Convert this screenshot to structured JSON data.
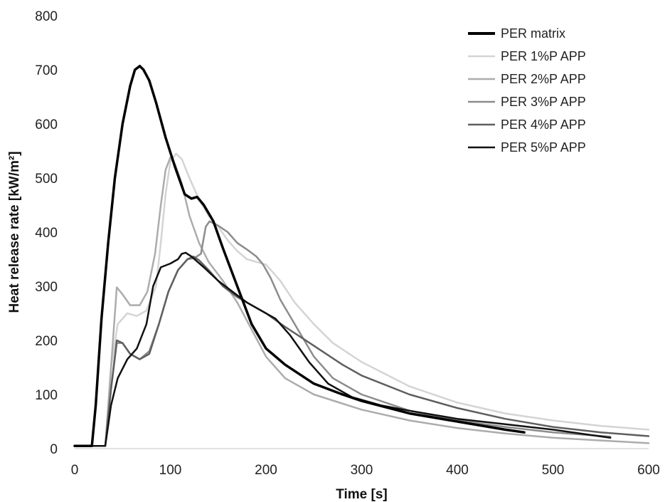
{
  "chart_data": {
    "type": "line",
    "xlabel": "Time [s]",
    "ylabel": "Heat release rate [kW/m²]",
    "xlim": [
      0,
      600
    ],
    "ylim": [
      0,
      800
    ],
    "xticks": [
      0,
      100,
      200,
      300,
      400,
      500,
      600
    ],
    "yticks": [
      0,
      100,
      200,
      300,
      400,
      500,
      600,
      700,
      800
    ],
    "grid": false,
    "legend_position": "top-right",
    "series": [
      {
        "name": "PER matrix",
        "color": "#000000",
        "width": 3.5,
        "points": [
          [
            0,
            5
          ],
          [
            15,
            5
          ],
          [
            18,
            5
          ],
          [
            22,
            80
          ],
          [
            28,
            240
          ],
          [
            35,
            380
          ],
          [
            42,
            500
          ],
          [
            50,
            600
          ],
          [
            58,
            670
          ],
          [
            63,
            700
          ],
          [
            68,
            707
          ],
          [
            72,
            700
          ],
          [
            78,
            680
          ],
          [
            85,
            640
          ],
          [
            95,
            575
          ],
          [
            105,
            520
          ],
          [
            115,
            470
          ],
          [
            122,
            462
          ],
          [
            128,
            465
          ],
          [
            135,
            450
          ],
          [
            145,
            420
          ],
          [
            155,
            370
          ],
          [
            170,
            300
          ],
          [
            185,
            230
          ],
          [
            200,
            185
          ],
          [
            220,
            155
          ],
          [
            250,
            120
          ],
          [
            280,
            100
          ],
          [
            300,
            88
          ],
          [
            350,
            65
          ],
          [
            400,
            50
          ],
          [
            450,
            35
          ],
          [
            470,
            30
          ]
        ]
      },
      {
        "name": "PER 1%P APP",
        "color": "#d4d4d4",
        "width": 2.5,
        "points": [
          [
            0,
            5
          ],
          [
            28,
            5
          ],
          [
            32,
            5
          ],
          [
            38,
            150
          ],
          [
            45,
            230
          ],
          [
            55,
            250
          ],
          [
            65,
            245
          ],
          [
            75,
            255
          ],
          [
            85,
            300
          ],
          [
            90,
            380
          ],
          [
            95,
            470
          ],
          [
            100,
            530
          ],
          [
            106,
            545
          ],
          [
            112,
            535
          ],
          [
            120,
            500
          ],
          [
            130,
            460
          ],
          [
            140,
            430
          ],
          [
            150,
            410
          ],
          [
            160,
            385
          ],
          [
            170,
            365
          ],
          [
            180,
            350
          ],
          [
            190,
            345
          ],
          [
            200,
            340
          ],
          [
            215,
            310
          ],
          [
            230,
            270
          ],
          [
            250,
            230
          ],
          [
            270,
            195
          ],
          [
            300,
            160
          ],
          [
            350,
            115
          ],
          [
            400,
            85
          ],
          [
            450,
            65
          ],
          [
            500,
            52
          ],
          [
            550,
            42
          ],
          [
            600,
            35
          ]
        ]
      },
      {
        "name": "PER 2%P APP",
        "color": "#acacac",
        "width": 2.5,
        "points": [
          [
            0,
            5
          ],
          [
            28,
            5
          ],
          [
            32,
            5
          ],
          [
            38,
            150
          ],
          [
            44,
            298
          ],
          [
            50,
            285
          ],
          [
            58,
            265
          ],
          [
            68,
            265
          ],
          [
            76,
            290
          ],
          [
            84,
            360
          ],
          [
            90,
            450
          ],
          [
            95,
            515
          ],
          [
            100,
            538
          ],
          [
            105,
            525
          ],
          [
            112,
            490
          ],
          [
            120,
            430
          ],
          [
            130,
            380
          ],
          [
            140,
            345
          ],
          [
            155,
            310
          ],
          [
            170,
            270
          ],
          [
            185,
            220
          ],
          [
            200,
            170
          ],
          [
            220,
            130
          ],
          [
            250,
            100
          ],
          [
            300,
            72
          ],
          [
            350,
            52
          ],
          [
            400,
            38
          ],
          [
            450,
            28
          ],
          [
            500,
            20
          ],
          [
            550,
            15
          ],
          [
            600,
            10
          ]
        ]
      },
      {
        "name": "PER 3%P APP",
        "color": "#8c8c8c",
        "width": 2.5,
        "points": [
          [
            0,
            5
          ],
          [
            28,
            5
          ],
          [
            32,
            5
          ],
          [
            38,
            110
          ],
          [
            44,
            195
          ],
          [
            50,
            195
          ],
          [
            58,
            175
          ],
          [
            68,
            165
          ],
          [
            78,
            180
          ],
          [
            88,
            230
          ],
          [
            98,
            290
          ],
          [
            108,
            330
          ],
          [
            118,
            350
          ],
          [
            125,
            352
          ],
          [
            132,
            360
          ],
          [
            137,
            410
          ],
          [
            141,
            420
          ],
          [
            150,
            412
          ],
          [
            160,
            400
          ],
          [
            170,
            380
          ],
          [
            180,
            368
          ],
          [
            190,
            355
          ],
          [
            197,
            340
          ],
          [
            205,
            315
          ],
          [
            215,
            275
          ],
          [
            230,
            230
          ],
          [
            250,
            170
          ],
          [
            270,
            130
          ],
          [
            300,
            100
          ],
          [
            350,
            70
          ],
          [
            400,
            52
          ],
          [
            450,
            40
          ],
          [
            500,
            30
          ],
          [
            560,
            22
          ]
        ]
      },
      {
        "name": "PER 4%P APP",
        "color": "#5f5f5f",
        "width": 2.5,
        "points": [
          [
            0,
            5
          ],
          [
            28,
            5
          ],
          [
            32,
            5
          ],
          [
            38,
            110
          ],
          [
            44,
            200
          ],
          [
            50,
            195
          ],
          [
            58,
            175
          ],
          [
            68,
            165
          ],
          [
            78,
            175
          ],
          [
            88,
            230
          ],
          [
            98,
            290
          ],
          [
            108,
            330
          ],
          [
            118,
            350
          ],
          [
            124,
            355
          ],
          [
            130,
            348
          ],
          [
            140,
            330
          ],
          [
            155,
            300
          ],
          [
            170,
            280
          ],
          [
            185,
            265
          ],
          [
            200,
            250
          ],
          [
            220,
            225
          ],
          [
            250,
            190
          ],
          [
            280,
            155
          ],
          [
            300,
            135
          ],
          [
            350,
            100
          ],
          [
            400,
            75
          ],
          [
            450,
            55
          ],
          [
            500,
            40
          ],
          [
            550,
            30
          ],
          [
            600,
            23
          ]
        ]
      },
      {
        "name": "PER 5%P APP",
        "color": "#111111",
        "width": 2.5,
        "points": [
          [
            0,
            5
          ],
          [
            28,
            5
          ],
          [
            32,
            5
          ],
          [
            38,
            80
          ],
          [
            45,
            130
          ],
          [
            55,
            165
          ],
          [
            65,
            185
          ],
          [
            75,
            230
          ],
          [
            82,
            300
          ],
          [
            90,
            335
          ],
          [
            100,
            342
          ],
          [
            108,
            350
          ],
          [
            112,
            360
          ],
          [
            116,
            362
          ],
          [
            122,
            355
          ],
          [
            135,
            335
          ],
          [
            150,
            310
          ],
          [
            165,
            290
          ],
          [
            180,
            270
          ],
          [
            195,
            255
          ],
          [
            210,
            240
          ],
          [
            225,
            210
          ],
          [
            245,
            160
          ],
          [
            265,
            120
          ],
          [
            290,
            95
          ],
          [
            320,
            80
          ],
          [
            350,
            70
          ],
          [
            400,
            55
          ],
          [
            450,
            45
          ],
          [
            500,
            35
          ],
          [
            540,
            25
          ],
          [
            560,
            20
          ]
        ]
      }
    ]
  }
}
